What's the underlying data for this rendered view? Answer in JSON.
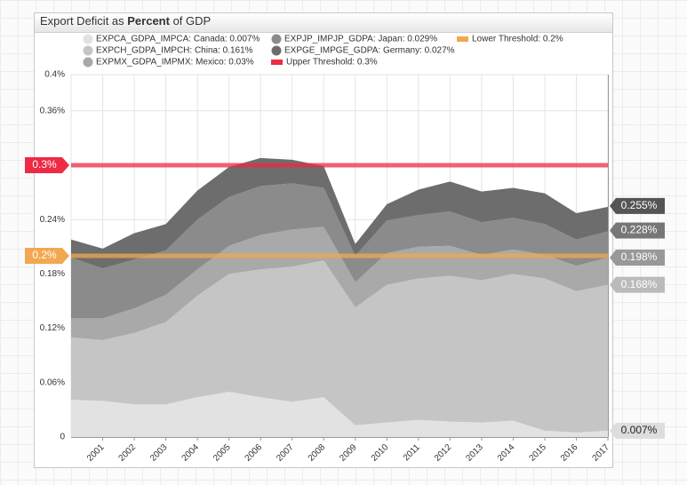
{
  "chart_data": {
    "type": "stacked-area",
    "title": [
      {
        "text": "Export Deficit as "
      },
      {
        "text": "Percent",
        "bold": true
      },
      {
        "text": " of GDP"
      }
    ],
    "categories": [
      null,
      "2001",
      "2002",
      "2003",
      "2004",
      "2005",
      "2006",
      "2007",
      "2008",
      "2009",
      "2010",
      "2011",
      "2012",
      "2013",
      "2014",
      "2015",
      "2016",
      "2017"
    ],
    "series": [
      {
        "name": "EXPCA_GDPA_IMPCA: Canada: 0.007%",
        "color": "#e2e2e2",
        "values": [
          0.041,
          0.04,
          0.036,
          0.036,
          0.044,
          0.05,
          0.044,
          0.039,
          0.044,
          0.013,
          0.016,
          0.019,
          0.017,
          0.016,
          0.018,
          0.007,
          0.005,
          0.007
        ]
      },
      {
        "name": "EXPCH_GDPA_IMPCH: China: 0.161%",
        "color": "#c5c5c5",
        "values": [
          0.069,
          0.067,
          0.079,
          0.091,
          0.112,
          0.13,
          0.141,
          0.149,
          0.151,
          0.13,
          0.152,
          0.156,
          0.161,
          0.157,
          0.162,
          0.168,
          0.156,
          0.161
        ]
      },
      {
        "name": "EXPMX_GDPA_IMPMX: Mexico: 0.03%",
        "color": "#a9a9a9",
        "values": [
          0.021,
          0.024,
          0.027,
          0.03,
          0.029,
          0.031,
          0.038,
          0.041,
          0.037,
          0.028,
          0.035,
          0.035,
          0.033,
          0.028,
          0.027,
          0.026,
          0.028,
          0.03
        ]
      },
      {
        "name": "EXPJP_IMPJP_GDPA: Japan: 0.029%",
        "color": "#8b8b8b",
        "values": [
          0.067,
          0.055,
          0.054,
          0.049,
          0.055,
          0.054,
          0.054,
          0.051,
          0.043,
          0.029,
          0.036,
          0.035,
          0.038,
          0.036,
          0.035,
          0.034,
          0.029,
          0.029
        ]
      },
      {
        "name": "EXPGE_IMPGE_GDPA: Germany: 0.027%",
        "color": "#6d6d6d",
        "values": [
          0.02,
          0.022,
          0.029,
          0.029,
          0.032,
          0.033,
          0.031,
          0.026,
          0.024,
          0.013,
          0.018,
          0.028,
          0.033,
          0.034,
          0.033,
          0.034,
          0.029,
          0.027
        ]
      }
    ],
    "thresholds": [
      {
        "name": "Lower Threshold: 0.2%",
        "value": 0.2,
        "label": "0.2%",
        "color": "#f2a850"
      },
      {
        "name": "Upper Threshold: 0.3%",
        "value": 0.3,
        "label": "0.3%",
        "color": "#ee2a44"
      }
    ],
    "end_labels": [
      {
        "value": 0.255,
        "label": "0.255%",
        "color": "#555555"
      },
      {
        "value": 0.228,
        "label": "0.228%",
        "color": "#777777"
      },
      {
        "value": 0.198,
        "label": "0.198%",
        "color": "#999999"
      },
      {
        "value": 0.168,
        "label": "0.168%",
        "color": "#bbbbbb"
      },
      {
        "value": 0.007,
        "label": "0.007%",
        "color": "#dddddd"
      }
    ],
    "ylim": [
      0,
      0.4
    ],
    "yticks": [
      0,
      {
        "value": 0.06,
        "label": "0.06%"
      },
      {
        "value": 0.12,
        "label": "0.12%"
      },
      {
        "value": 0.18,
        "label": "0.18%"
      },
      {
        "value": 0.24,
        "label": "0.24%"
      },
      {
        "value": 0.36,
        "label": "0.36%"
      },
      {
        "value": 0.4,
        "label": "0.4%"
      }
    ],
    "grid": true
  }
}
